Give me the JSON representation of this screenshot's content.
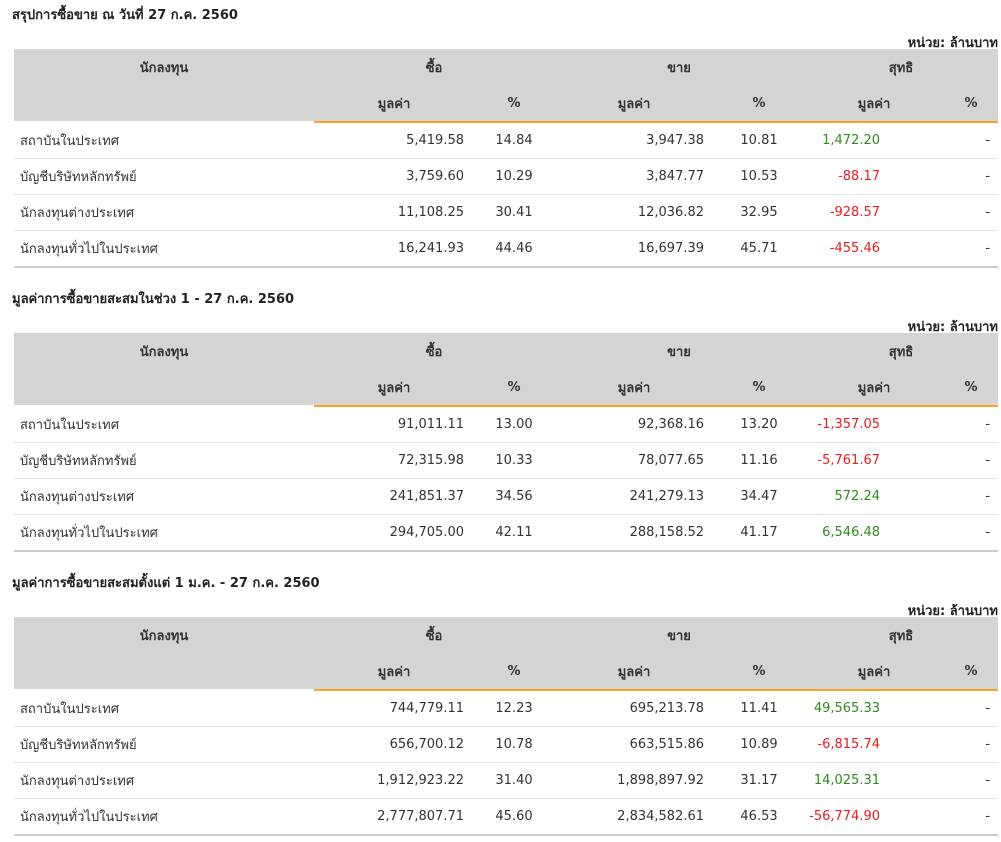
{
  "sections": [
    {
      "title": "สรุปการซื้อขาย ณ วันที่ 27 ก.ค. 2560",
      "unit": "หน่วย: ล้านบาท",
      "headers": {
        "investor": "นักลงทุน",
        "buy": "ซื้อ",
        "sell": "ขาย",
        "net": "สุทธิ",
        "value": "มูลค่า",
        "pct": "%"
      },
      "rows": [
        {
          "name": "สถาบันในประเทศ",
          "buy_value": "5,419.58",
          "buy_pct": "14.84",
          "sell_value": "3,947.38",
          "sell_pct": "10.81",
          "net_value": "1,472.20",
          "net_pct": "-",
          "net_sign": "pos"
        },
        {
          "name": "บัญชีบริษัทหลักทรัพย์",
          "buy_value": "3,759.60",
          "buy_pct": "10.29",
          "sell_value": "3,847.77",
          "sell_pct": "10.53",
          "net_value": "-88.17",
          "net_pct": "-",
          "net_sign": "neg"
        },
        {
          "name": "นักลงทุนต่างประเทศ",
          "buy_value": "11,108.25",
          "buy_pct": "30.41",
          "sell_value": "12,036.82",
          "sell_pct": "32.95",
          "net_value": "-928.57",
          "net_pct": "-",
          "net_sign": "neg"
        },
        {
          "name": "นักลงทุนทั่วไปในประเทศ",
          "buy_value": "16,241.93",
          "buy_pct": "44.46",
          "sell_value": "16,697.39",
          "sell_pct": "45.71",
          "net_value": "-455.46",
          "net_pct": "-",
          "net_sign": "neg"
        }
      ]
    },
    {
      "title": "มูลค่าการซื้อขายสะสมในช่วง 1 - 27 ก.ค. 2560",
      "unit": "หน่วย: ล้านบาท",
      "headers": {
        "investor": "นักลงทุน",
        "buy": "ซื้อ",
        "sell": "ขาย",
        "net": "สุทธิ",
        "value": "มูลค่า",
        "pct": "%"
      },
      "rows": [
        {
          "name": "สถาบันในประเทศ",
          "buy_value": "91,011.11",
          "buy_pct": "13.00",
          "sell_value": "92,368.16",
          "sell_pct": "13.20",
          "net_value": "-1,357.05",
          "net_pct": "-",
          "net_sign": "neg"
        },
        {
          "name": "บัญชีบริษัทหลักทรัพย์",
          "buy_value": "72,315.98",
          "buy_pct": "10.33",
          "sell_value": "78,077.65",
          "sell_pct": "11.16",
          "net_value": "-5,761.67",
          "net_pct": "-",
          "net_sign": "neg"
        },
        {
          "name": "นักลงทุนต่างประเทศ",
          "buy_value": "241,851.37",
          "buy_pct": "34.56",
          "sell_value": "241,279.13",
          "sell_pct": "34.47",
          "net_value": "572.24",
          "net_pct": "-",
          "net_sign": "pos"
        },
        {
          "name": "นักลงทุนทั่วไปในประเทศ",
          "buy_value": "294,705.00",
          "buy_pct": "42.11",
          "sell_value": "288,158.52",
          "sell_pct": "41.17",
          "net_value": "6,546.48",
          "net_pct": "-",
          "net_sign": "pos"
        }
      ]
    },
    {
      "title": "มูลค่าการซื้อขายสะสมตั้งแต่ 1 ม.ค. - 27 ก.ค. 2560",
      "unit": "หน่วย: ล้านบาท",
      "headers": {
        "investor": "นักลงทุน",
        "buy": "ซื้อ",
        "sell": "ขาย",
        "net": "สุทธิ",
        "value": "มูลค่า",
        "pct": "%"
      },
      "rows": [
        {
          "name": "สถาบันในประเทศ",
          "buy_value": "744,779.11",
          "buy_pct": "12.23",
          "sell_value": "695,213.78",
          "sell_pct": "11.41",
          "net_value": "49,565.33",
          "net_pct": "-",
          "net_sign": "pos"
        },
        {
          "name": "บัญชีบริษัทหลักทรัพย์",
          "buy_value": "656,700.12",
          "buy_pct": "10.78",
          "sell_value": "663,515.86",
          "sell_pct": "10.89",
          "net_value": "-6,815.74",
          "net_pct": "-",
          "net_sign": "neg"
        },
        {
          "name": "นักลงทุนต่างประเทศ",
          "buy_value": "1,912,923.22",
          "buy_pct": "31.40",
          "sell_value": "1,898,897.92",
          "sell_pct": "31.17",
          "net_value": "14,025.31",
          "net_pct": "-",
          "net_sign": "pos"
        },
        {
          "name": "นักลงทุนทั่วไปในประเทศ",
          "buy_value": "2,777,807.71",
          "buy_pct": "45.60",
          "sell_value": "2,834,582.61",
          "sell_pct": "46.53",
          "net_value": "-56,774.90",
          "net_pct": "-",
          "net_sign": "neg"
        }
      ]
    }
  ],
  "colors": {
    "positive": "#2e8b1e",
    "negative": "#e02020",
    "header_bg": "#d4d4d4",
    "accent": "#f5a623"
  }
}
